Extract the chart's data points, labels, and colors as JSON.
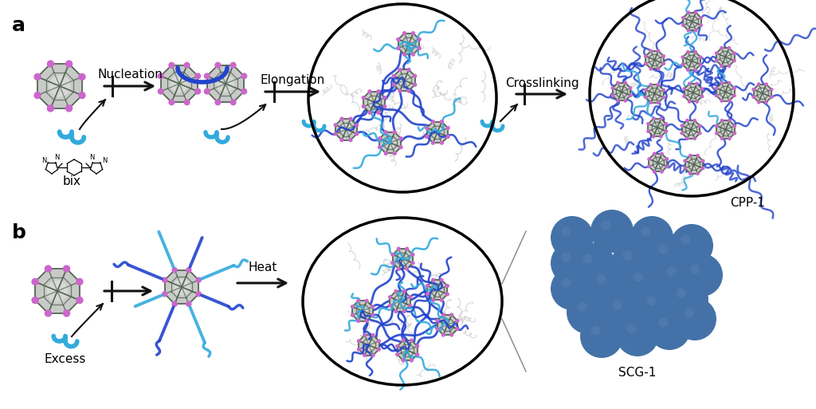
{
  "bg_color": "#ffffff",
  "label_a": "a",
  "label_b": "b",
  "text_nucleation": "Nucleation",
  "text_elongation": "Elongation",
  "text_crosslinking": "Crosslinking",
  "text_heat": "Heat",
  "text_excess": "Excess",
  "text_bix": "bix",
  "text_cpp1": "CPP-1",
  "text_scg1": "SCG-1",
  "arrow_color": "#111111",
  "mop_cage_color": "#556655",
  "mop_fill": "#c8cac8",
  "mop_node_color": "#cc66cc",
  "blue_linker": "#2244cc",
  "cyan_linker": "#33aadd",
  "scg_ball_color": "#4472a8",
  "font_size_label": 15,
  "font_size_text": 11,
  "font_size_small": 9
}
